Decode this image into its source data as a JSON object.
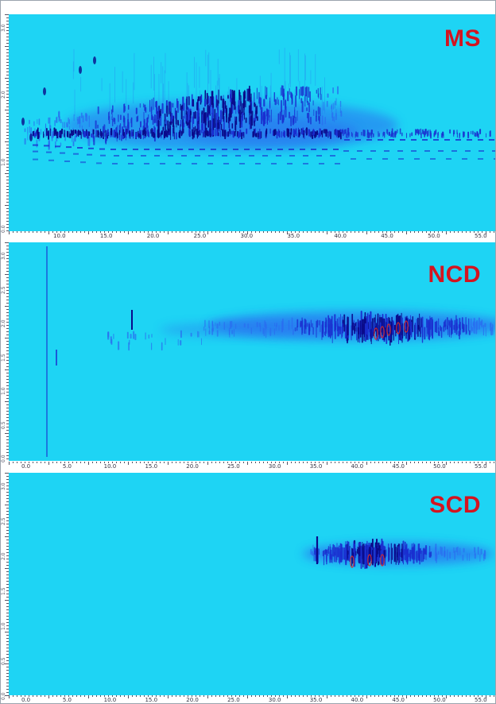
{
  "chart_data": [
    {
      "type": "heatmap",
      "title": "MS",
      "x_tick_labels": [
        "10.0",
        "15.0",
        "20.0",
        "25.0",
        "30.0",
        "35.0",
        "40.0",
        "45.0",
        "50.0",
        "55.0"
      ],
      "y_tick_labels": [
        "0.0",
        "1.0",
        "2.0",
        "3.0"
      ],
      "colors": {
        "background": "#1ed4f4",
        "low": "#2a6cf0",
        "mid": "#1a2fd0",
        "high": "#0a0a8a"
      }
    },
    {
      "type": "heatmap",
      "title": "NCD",
      "x_tick_labels": [
        "0.0",
        "5.0",
        "10.0",
        "15.0",
        "20.0",
        "25.0",
        "30.0",
        "35.0",
        "40.0",
        "45.0",
        "50.0",
        "55.0"
      ],
      "y_tick_labels": [
        "0.0",
        "0.5",
        "1.0",
        "1.5",
        "2.0",
        "2.5",
        "3.0"
      ],
      "colors": {
        "background": "#1ed4f4",
        "low": "#2a6cf0",
        "mid": "#1a2fd0",
        "high": "#0a0a8a",
        "peak": "#d42a2a"
      }
    },
    {
      "type": "heatmap",
      "title": "SCD",
      "x_tick_labels": [
        "0.0",
        "5.0",
        "10.0",
        "15.0",
        "20.0",
        "25.0",
        "30.0",
        "35.0",
        "40.0",
        "45.0",
        "50.0",
        "55.0"
      ],
      "y_tick_labels": [
        "0.0",
        "0.5",
        "1.0",
        "1.5",
        "2.0",
        "2.5",
        "3.0"
      ],
      "colors": {
        "background": "#1ed4f4",
        "low": "#2a6cf0",
        "mid": "#1a2fd0",
        "high": "#0a0a8a",
        "peak": "#d42a2a"
      }
    }
  ]
}
